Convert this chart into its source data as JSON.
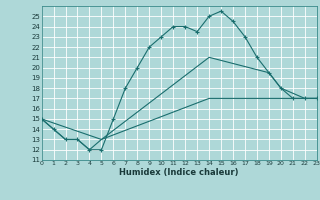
{
  "xlabel": "Humidex (Indice chaleur)",
  "bg_color": "#aed8d8",
  "grid_color": "#ffffff",
  "line_color": "#1a6e6e",
  "xlim": [
    0,
    23
  ],
  "ylim": [
    11,
    26
  ],
  "xticks": [
    0,
    1,
    2,
    3,
    4,
    5,
    6,
    7,
    8,
    9,
    10,
    11,
    12,
    13,
    14,
    15,
    16,
    17,
    18,
    19,
    20,
    21,
    22,
    23
  ],
  "yticks": [
    11,
    12,
    13,
    14,
    15,
    16,
    17,
    18,
    19,
    20,
    21,
    22,
    23,
    24,
    25
  ],
  "curve1_x": [
    0,
    1,
    2,
    3,
    4,
    5,
    6,
    7,
    8,
    9,
    10,
    11,
    12,
    13,
    14,
    15,
    16,
    17,
    18,
    19,
    20,
    21,
    22,
    23
  ],
  "curve1_y": [
    15,
    14,
    13,
    13,
    12,
    12,
    15,
    18,
    20,
    22,
    23,
    24,
    24,
    23.5,
    25,
    25.5,
    24.5,
    23,
    21,
    19.5,
    18,
    17,
    17,
    17
  ],
  "curve2_x": [
    0,
    2,
    3,
    4,
    5,
    14,
    19,
    20,
    22,
    23
  ],
  "curve2_y": [
    15,
    13,
    13,
    12,
    13,
    21,
    19.5,
    18,
    17,
    17
  ],
  "curve3_x": [
    0,
    5,
    14,
    22,
    23
  ],
  "curve3_y": [
    15,
    13,
    17,
    17,
    17
  ]
}
